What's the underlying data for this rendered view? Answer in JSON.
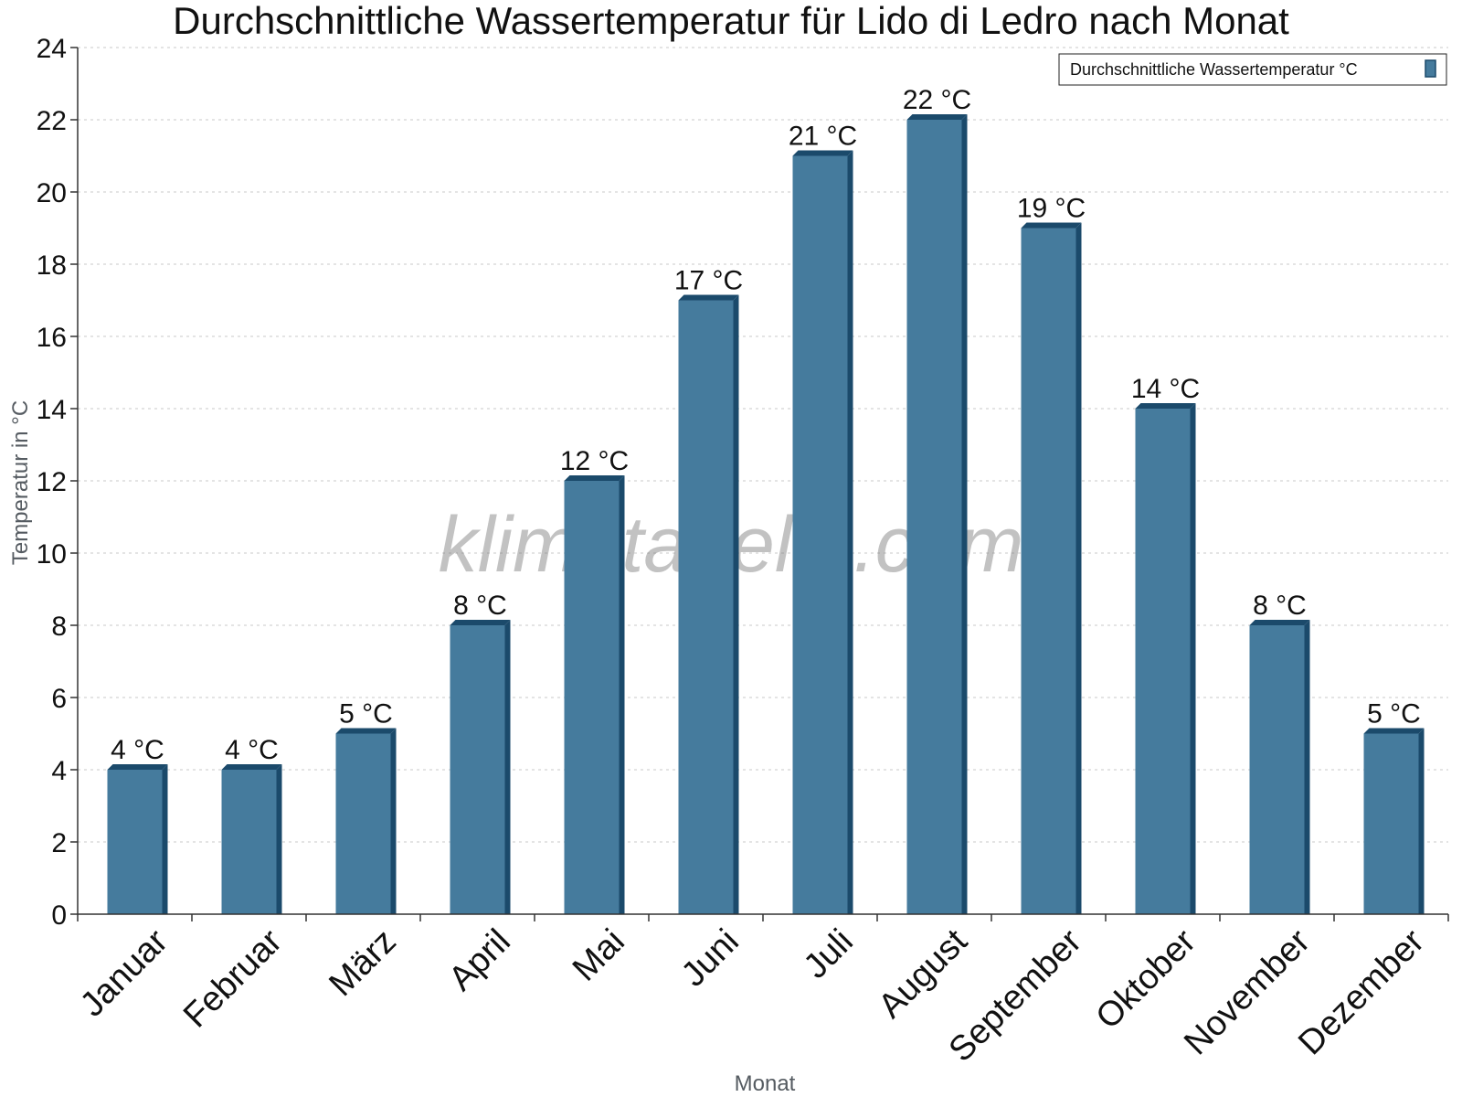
{
  "chart_data": {
    "type": "bar",
    "title": "Durchschnittliche Wassertemperatur für Lido di Ledro nach Monat",
    "xlabel": "Monat",
    "ylabel": "Temperatur in °C",
    "categories": [
      "Januar",
      "Februar",
      "März",
      "April",
      "Mai",
      "Juni",
      "Juli",
      "August",
      "September",
      "Oktober",
      "November",
      "Dezember"
    ],
    "series": [
      {
        "name": "Durchschnittliche Wassertemperatur °C",
        "values": [
          4,
          4,
          5,
          8,
          12,
          17,
          21,
          22,
          19,
          14,
          8,
          5
        ]
      }
    ],
    "data_labels": [
      "4 °C",
      "4 °C",
      "5 °C",
      "8 °C",
      "12 °C",
      "17 °C",
      "21 °C",
      "22 °C",
      "19 °C",
      "14 °C",
      "8 °C",
      "5 °C"
    ],
    "ylim": [
      0,
      24
    ],
    "yticks": [
      0,
      2,
      4,
      6,
      8,
      10,
      12,
      14,
      16,
      18,
      20,
      22,
      24
    ],
    "grid": true,
    "legend_position": "top-right",
    "bar_color": "#457b9d",
    "bar_shadow_color": "#1b4a6b",
    "watermark": "klimatabelle.com"
  }
}
